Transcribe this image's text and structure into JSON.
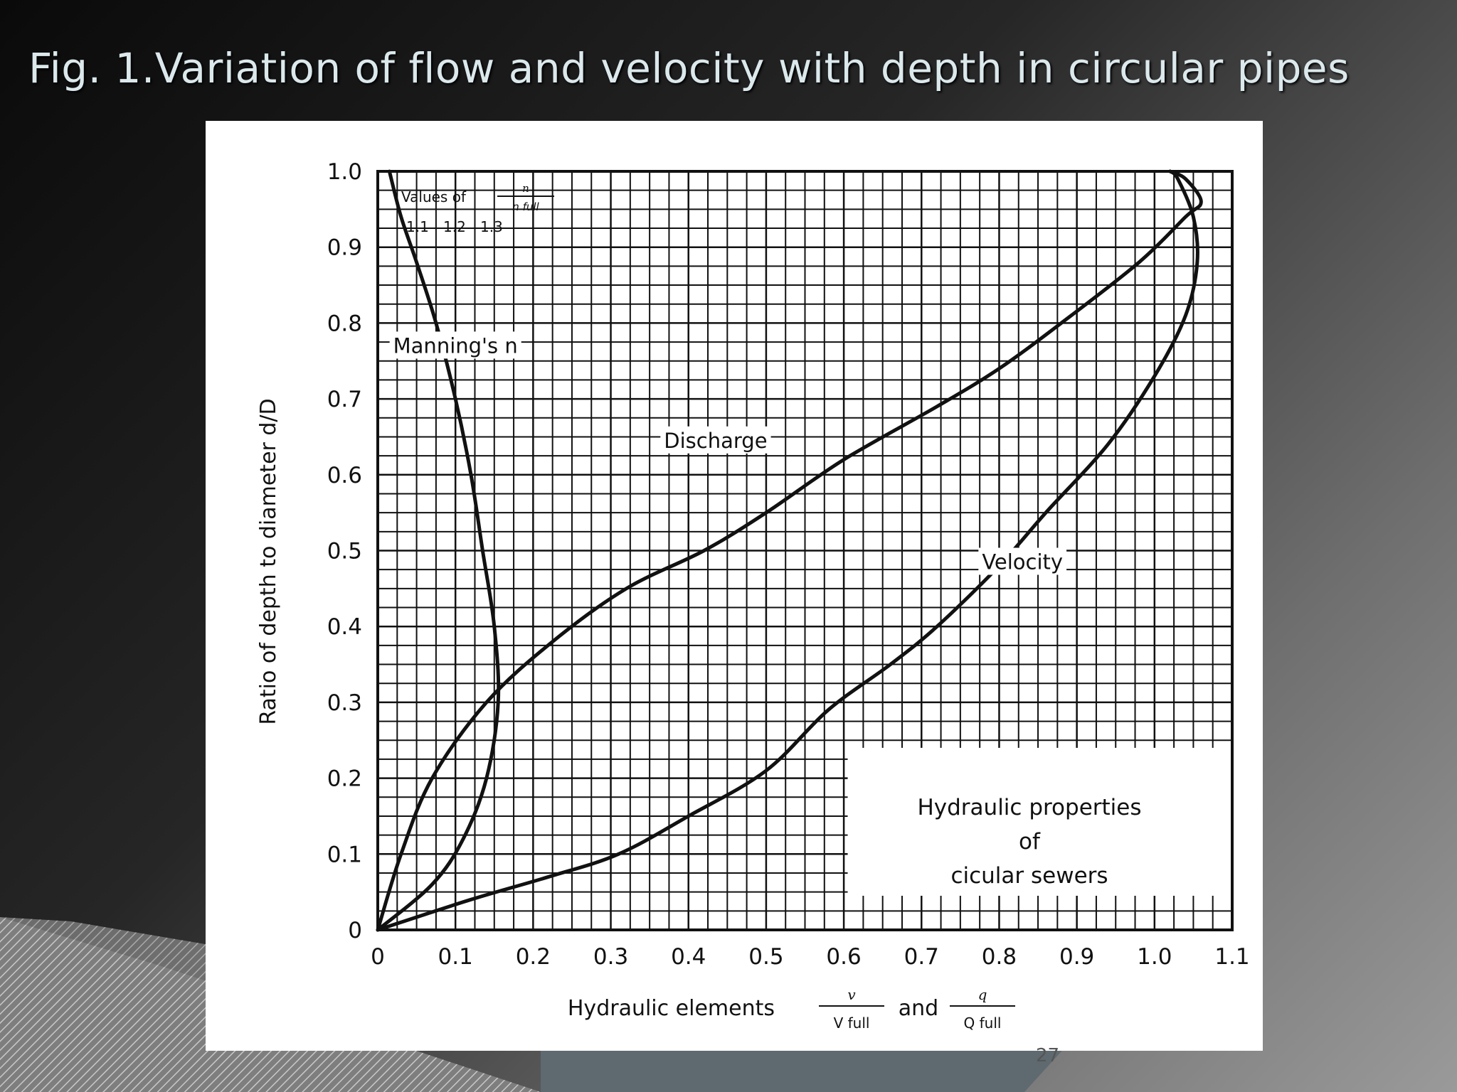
{
  "slide": {
    "title": "Fig. 1.Variation of flow and velocity with depth in circular pipes",
    "page_number": "27"
  },
  "colors": {
    "background_dark": "#0a0a0a",
    "background_light": "#9a9a9a",
    "title_text": "#dbe8ec",
    "figure_background": "#ffffff",
    "ink": "#111111"
  },
  "chart_data": {
    "type": "line",
    "title": "",
    "xlabel": "Hydraulic elements v/V full and q/Q full",
    "xlabel_parts": {
      "prefix": "Hydraulic elements",
      "frac1_num": "v",
      "frac1_den": "V full",
      "conj": "and",
      "frac2_num": "q",
      "frac2_den": "Q full"
    },
    "ylabel": "Ratio of depth to diameter d/D",
    "xlim": [
      0,
      1.1
    ],
    "ylim": [
      0,
      1.0
    ],
    "grid": true,
    "xticks": [
      "0",
      "0.1",
      "0.2",
      "0.3",
      "0.4",
      "0.5",
      "0.6",
      "0.7",
      "0.8",
      "0.9",
      "1.0",
      "1.1"
    ],
    "yticks": [
      "0",
      "0.1",
      "0.2",
      "0.3",
      "0.4",
      "0.5",
      "0.6",
      "0.7",
      "0.8",
      "0.9",
      "1.0"
    ],
    "secondary_scale": {
      "label_line1": "Values of n / n full",
      "ticks": [
        "1.1",
        "1.2",
        "1.3"
      ]
    },
    "legend_box": {
      "line1": "Hydraulic properties",
      "line2": "of",
      "line3": "cicular sewers"
    },
    "series": [
      {
        "name": "Discharge",
        "points": [
          [
            0,
            0
          ],
          [
            0.03,
            0.1
          ],
          [
            0.07,
            0.2
          ],
          [
            0.14,
            0.3
          ],
          [
            0.225,
            0.38
          ],
          [
            0.32,
            0.45
          ],
          [
            0.42,
            0.5
          ],
          [
            0.5,
            0.55
          ],
          [
            0.6,
            0.62
          ],
          [
            0.72,
            0.69
          ],
          [
            0.8,
            0.74
          ],
          [
            0.88,
            0.8
          ],
          [
            0.98,
            0.88
          ],
          [
            1.04,
            0.94
          ],
          [
            1.06,
            0.96
          ],
          [
            1.04,
            0.99
          ],
          [
            1.02,
            1.0
          ]
        ]
      },
      {
        "name": "Velocity",
        "points": [
          [
            0,
            0
          ],
          [
            0.12,
            0.04
          ],
          [
            0.22,
            0.07
          ],
          [
            0.31,
            0.1
          ],
          [
            0.4,
            0.15
          ],
          [
            0.5,
            0.21
          ],
          [
            0.58,
            0.29
          ],
          [
            0.66,
            0.35
          ],
          [
            0.72,
            0.4
          ],
          [
            0.8,
            0.48
          ],
          [
            0.86,
            0.55
          ],
          [
            0.94,
            0.64
          ],
          [
            1.0,
            0.73
          ],
          [
            1.04,
            0.81
          ],
          [
            1.055,
            0.88
          ],
          [
            1.05,
            0.94
          ],
          [
            1.03,
            0.99
          ],
          [
            1.02,
            1.0
          ]
        ]
      },
      {
        "name": "Manning's n",
        "points": [
          [
            0,
            0
          ],
          [
            0.07,
            0.06
          ],
          [
            0.11,
            0.12
          ],
          [
            0.14,
            0.2
          ],
          [
            0.155,
            0.3
          ],
          [
            0.15,
            0.4
          ],
          [
            0.135,
            0.5
          ],
          [
            0.12,
            0.6
          ],
          [
            0.1,
            0.7
          ],
          [
            0.075,
            0.8
          ],
          [
            0.05,
            0.88
          ],
          [
            0.03,
            0.94
          ],
          [
            0.015,
            1.0
          ]
        ]
      }
    ],
    "annotations": [
      {
        "text": "Manning's n",
        "x": 0.1,
        "y": 0.77
      },
      {
        "text": "Discharge",
        "x": 0.435,
        "y": 0.645
      },
      {
        "text": "Velocity",
        "x": 0.83,
        "y": 0.485
      }
    ]
  }
}
